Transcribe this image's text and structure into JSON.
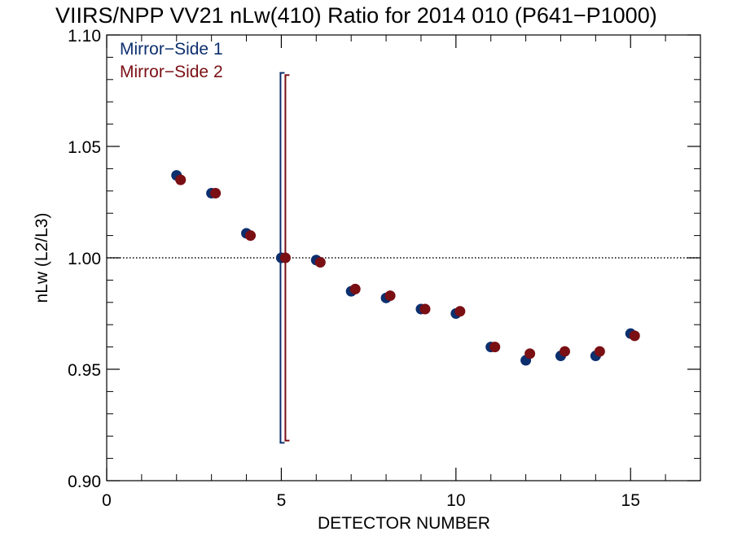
{
  "chart_data": {
    "type": "scatter",
    "title": "VIIRS/NPP VV21 nLw(410) Ratio for 2014 010 (P641−P1000)",
    "xlabel": "DETECTOR NUMBER",
    "ylabel": "nLw (L2/L3)",
    "xlim": [
      0,
      17
    ],
    "ylim": [
      0.9,
      1.1
    ],
    "x_ticks": [
      "0",
      "5",
      "10",
      "15"
    ],
    "x_tick_values": [
      0,
      5,
      10,
      15
    ],
    "y_ticks": [
      "0.90",
      "0.95",
      "1.00",
      "1.05",
      "1.10"
    ],
    "y_tick_values": [
      0.9,
      0.95,
      1.0,
      1.05,
      1.1
    ],
    "reference_line": 1.0,
    "legend_position": "top-left",
    "series": [
      {
        "name": "Mirror−Side 1",
        "color": "#0d2f6e",
        "x": [
          2,
          3,
          4,
          5,
          6,
          7,
          8,
          9,
          10,
          11,
          12,
          13,
          14,
          15
        ],
        "y": [
          1.037,
          1.029,
          1.011,
          1.0,
          0.999,
          0.985,
          0.982,
          0.977,
          0.975,
          0.96,
          0.954,
          0.956,
          0.956,
          0.966
        ],
        "error_bar": {
          "x": 5,
          "low": 0.917,
          "high": 1.083
        }
      },
      {
        "name": "Mirror−Side 2",
        "color": "#7a0f14",
        "x": [
          2,
          3,
          4,
          5,
          6,
          7,
          8,
          9,
          10,
          11,
          12,
          13,
          14,
          15
        ],
        "y": [
          1.035,
          1.029,
          1.01,
          1.0,
          0.998,
          0.986,
          0.983,
          0.977,
          0.976,
          0.96,
          0.957,
          0.958,
          0.958,
          0.965
        ],
        "error_bar": {
          "x": 5,
          "low": 0.918,
          "high": 1.082
        }
      }
    ]
  }
}
